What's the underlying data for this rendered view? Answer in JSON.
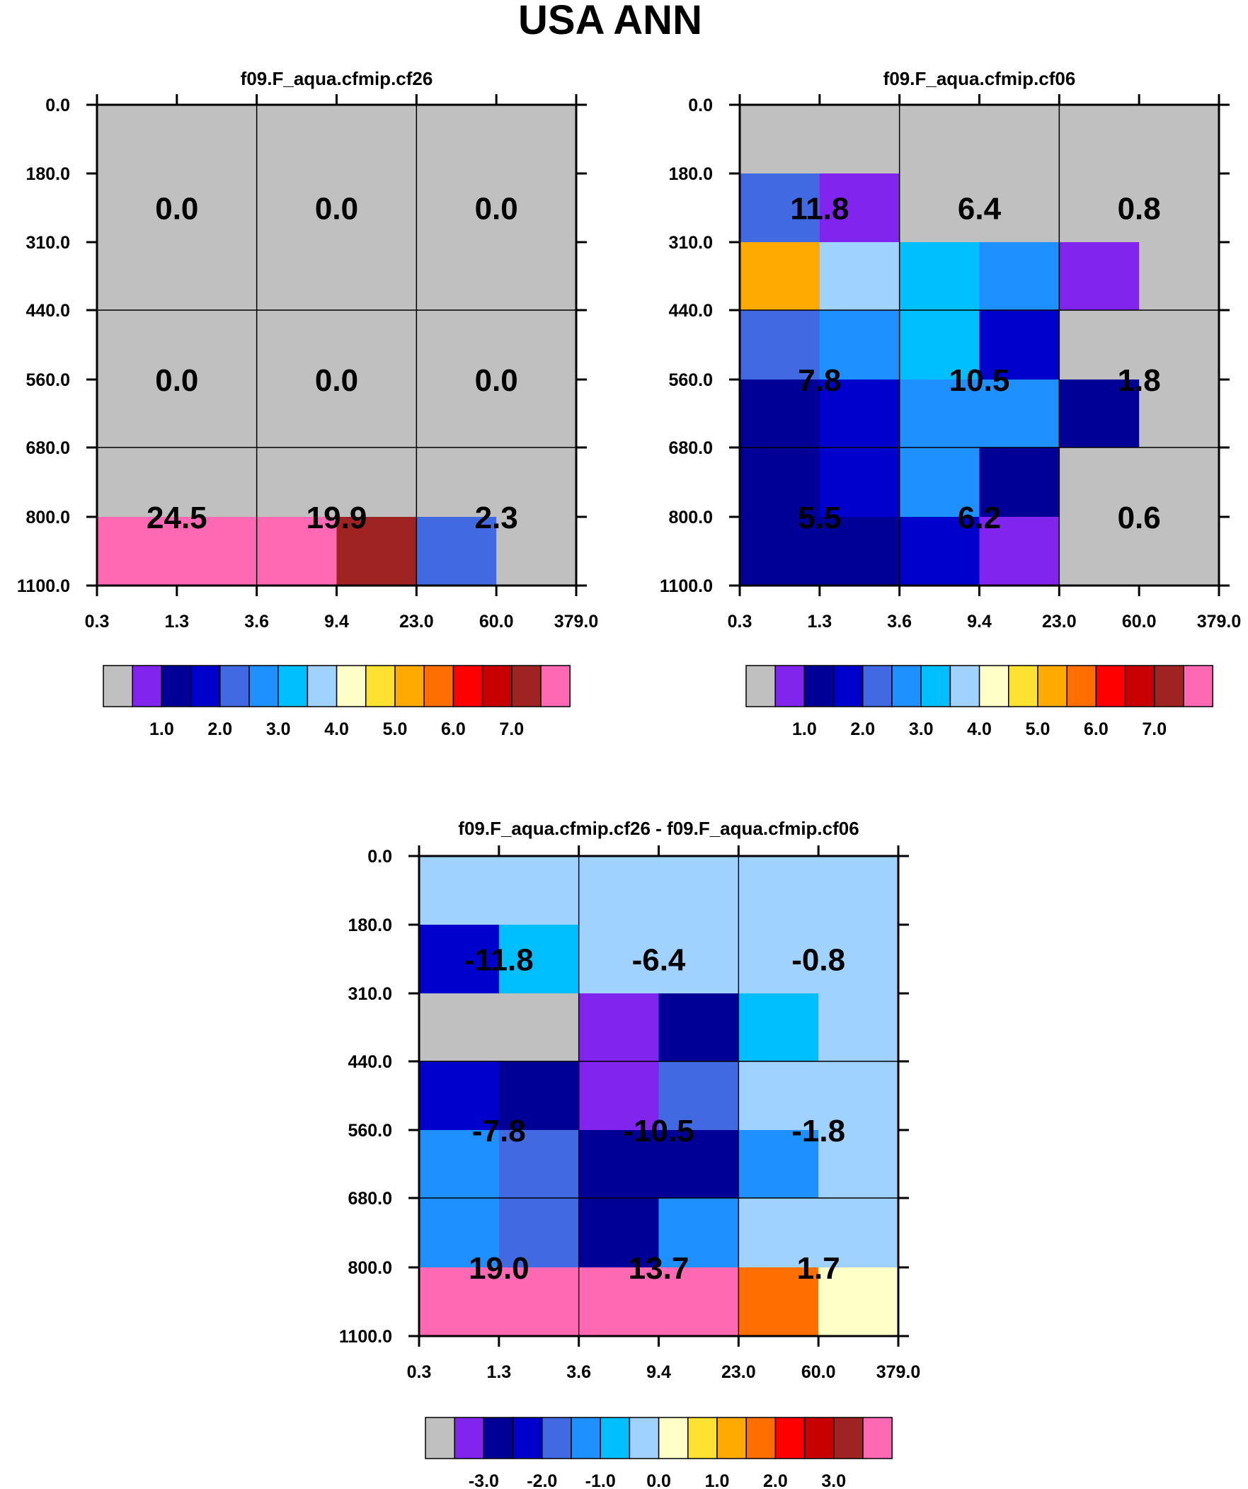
{
  "title": "USA ANN",
  "colors": {
    "nodata": "#c0c0c0",
    "palette": [
      "#c0c0c0",
      "#8125ee",
      "#000096",
      "#0000cd",
      "#4169e1",
      "#1e90ff",
      "#00bfff",
      "#a0d2ff",
      "#ffffc8",
      "#ffe132",
      "#ffaa00",
      "#ff6e00",
      "#ff0000",
      "#c80000",
      "#a02323",
      "#ff69b4"
    ]
  },
  "chart_data": [
    {
      "type": "heatmap",
      "title": "f09.F_aqua.cfmip.cf26",
      "x_ticks": [
        "0.3",
        "1.3",
        "3.6",
        "9.4",
        "23.0",
        "60.0",
        "379.0"
      ],
      "y_ticks": [
        "0.0",
        "180.0",
        "310.0",
        "440.0",
        "560.0",
        "680.0",
        "800.0",
        "1100.0"
      ],
      "cells": [
        [
          0,
          0,
          0,
          0,
          0,
          0
        ],
        [
          0,
          0,
          0,
          0,
          0,
          0
        ],
        [
          0,
          0,
          0,
          0,
          0,
          0
        ],
        [
          0,
          0,
          0,
          0,
          0,
          0
        ],
        [
          0,
          0,
          0,
          0,
          0,
          0
        ],
        [
          0,
          0,
          0,
          0,
          0,
          0
        ],
        [
          15,
          15,
          15,
          14,
          4,
          0
        ]
      ],
      "box_values": [
        [
          "0.0",
          "0.0",
          "0.0"
        ],
        [
          "0.0",
          "0.0",
          "0.0"
        ],
        [
          "24.5",
          "19.9",
          "2.3"
        ]
      ],
      "colorbar_labels": [
        "1.0",
        "2.0",
        "3.0",
        "4.0",
        "5.0",
        "6.0",
        "7.0"
      ]
    },
    {
      "type": "heatmap",
      "title": "f09.F_aqua.cfmip.cf06",
      "x_ticks": [
        "0.3",
        "1.3",
        "3.6",
        "9.4",
        "23.0",
        "60.0",
        "379.0"
      ],
      "y_ticks": [
        "0.0",
        "180.0",
        "310.0",
        "440.0",
        "560.0",
        "680.0",
        "800.0",
        "1100.0"
      ],
      "cells": [
        [
          0,
          0,
          0,
          0,
          0,
          0
        ],
        [
          4,
          1,
          0,
          0,
          0,
          0
        ],
        [
          10,
          7,
          6,
          5,
          1,
          0
        ],
        [
          4,
          5,
          6,
          3,
          0,
          0
        ],
        [
          2,
          3,
          5,
          5,
          2,
          0
        ],
        [
          2,
          3,
          5,
          2,
          0,
          0
        ],
        [
          2,
          2,
          3,
          1,
          0,
          0
        ]
      ],
      "box_values": [
        [
          "11.8",
          "6.4",
          "0.8"
        ],
        [
          "7.8",
          "10.5",
          "1.8"
        ],
        [
          "5.5",
          "6.2",
          "0.6"
        ]
      ],
      "colorbar_labels": [
        "1.0",
        "2.0",
        "3.0",
        "4.0",
        "5.0",
        "6.0",
        "7.0"
      ]
    },
    {
      "type": "heatmap",
      "title": "f09.F_aqua.cfmip.cf26 - f09.F_aqua.cfmip.cf06",
      "x_ticks": [
        "0.3",
        "1.3",
        "3.6",
        "9.4",
        "23.0",
        "60.0",
        "379.0"
      ],
      "y_ticks": [
        "0.0",
        "180.0",
        "310.0",
        "440.0",
        "560.0",
        "680.0",
        "800.0",
        "1100.0"
      ],
      "cells": [
        [
          7,
          7,
          7,
          7,
          7,
          7
        ],
        [
          3,
          6,
          7,
          7,
          7,
          7
        ],
        [
          0,
          0,
          1,
          2,
          6,
          7
        ],
        [
          3,
          2,
          1,
          4,
          7,
          7
        ],
        [
          5,
          4,
          2,
          2,
          5,
          7
        ],
        [
          5,
          4,
          2,
          5,
          7,
          7
        ],
        [
          15,
          15,
          15,
          15,
          11,
          8
        ]
      ],
      "box_values": [
        [
          "-11.8",
          "-6.4",
          "-0.8"
        ],
        [
          "-7.8",
          "-10.5",
          "-1.8"
        ],
        [
          "19.0",
          "13.7",
          "1.7"
        ]
      ],
      "colorbar_labels": [
        "-3.0",
        "-2.0",
        "-1.0",
        "0.0",
        "1.0",
        "2.0",
        "3.0"
      ]
    }
  ]
}
